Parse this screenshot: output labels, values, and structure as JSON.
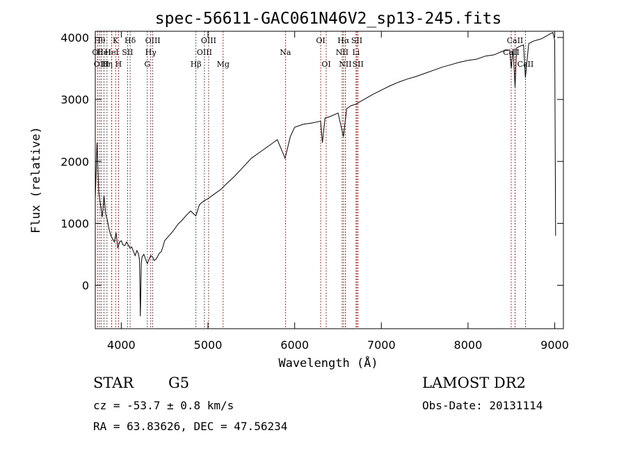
{
  "chart_data": {
    "type": "line",
    "title": "spec-56611-GAC061N46V2_sp13-245.fits",
    "xlabel": "Wavelength (Å)",
    "ylabel": "Flux (relative)",
    "xlim": [
      3700,
      9100
    ],
    "ylim": [
      -700,
      4100
    ],
    "x_ticks": [
      4000,
      5000,
      6000,
      7000,
      8000,
      9000
    ],
    "y_ticks": [
      0,
      1000,
      2000,
      3000,
      4000
    ],
    "grid": false,
    "line_color": "#000000",
    "marker_color": "#8b0000",
    "series": [
      {
        "x": [
          3700,
          3720,
          3740,
          3760,
          3780,
          3800,
          3820,
          3840,
          3860,
          3880,
          3900,
          3920,
          3940,
          3960,
          3980,
          4000,
          4020,
          4040,
          4060,
          4080,
          4100,
          4120,
          4140,
          4160,
          4180,
          4200,
          4210,
          4220,
          4230,
          4240,
          4260,
          4280,
          4300,
          4320,
          4340,
          4360,
          4380,
          4400,
          4420,
          4440,
          4460,
          4480,
          4500,
          4550,
          4600,
          4650,
          4700,
          4750,
          4800,
          4860,
          4900,
          4950,
          5000,
          5050,
          5100,
          5150,
          5200,
          5300,
          5400,
          5500,
          5600,
          5700,
          5800,
          5890,
          5950,
          6000,
          6100,
          6200,
          6300,
          6320,
          6350,
          6400,
          6500,
          6563,
          6600,
          6650,
          6700,
          6800,
          6900,
          7000,
          7100,
          7200,
          7300,
          7400,
          7500,
          7600,
          7700,
          7800,
          7900,
          8000,
          8100,
          8200,
          8300,
          8400,
          8480,
          8498,
          8520,
          8542,
          8560,
          8600,
          8640,
          8662,
          8700,
          8750,
          8800,
          8850,
          8900,
          8950,
          8980,
          9000,
          9010
        ],
        "y": [
          1400,
          2300,
          1500,
          1300,
          1100,
          1450,
          1150,
          1050,
          900,
          800,
          750,
          700,
          850,
          600,
          700,
          720,
          650,
          640,
          700,
          650,
          600,
          620,
          550,
          480,
          560,
          500,
          400,
          -500,
          350,
          460,
          500,
          420,
          350,
          420,
          480,
          460,
          400,
          420,
          470,
          520,
          540,
          620,
          720,
          800,
          880,
          980,
          1050,
          1130,
          1200,
          1120,
          1300,
          1360,
          1400,
          1450,
          1500,
          1550,
          1620,
          1750,
          1900,
          2050,
          2150,
          2250,
          2350,
          2050,
          2400,
          2550,
          2600,
          2620,
          2650,
          2300,
          2700,
          2720,
          2780,
          2400,
          2850,
          2900,
          2920,
          3000,
          3080,
          3150,
          3220,
          3280,
          3330,
          3370,
          3420,
          3470,
          3520,
          3560,
          3600,
          3630,
          3650,
          3700,
          3720,
          3780,
          3800,
          3500,
          3820,
          3200,
          3830,
          3860,
          3880,
          3350,
          3900,
          3940,
          3960,
          3980,
          4020,
          4060,
          4080,
          3950,
          800
        ]
      }
    ],
    "lines": [
      {
        "x": 3727,
        "labels": [
          "Oll"
        ],
        "row": 1
      },
      {
        "x": 3750,
        "labels": [
          "Hθ"
        ],
        "row": 0
      },
      {
        "x": 3770,
        "labels": [
          "OIII"
        ],
        "row": 2
      },
      {
        "x": 3800,
        "labels": [
          "HeI"
        ],
        "row": 1
      },
      {
        "x": 3835,
        "labels": [
          "Hη"
        ],
        "row": 2
      },
      {
        "x": 3889,
        "labels": [
          "HeI"
        ],
        "row": 1
      },
      {
        "x": 3934,
        "labels": [
          "K"
        ],
        "row": 0
      },
      {
        "x": 3968,
        "labels": [
          "H"
        ],
        "row": 2
      },
      {
        "x": 4072,
        "labels": [
          "SII"
        ],
        "row": 1
      },
      {
        "x": 4102,
        "labels": [
          "Hδ"
        ],
        "row": 0
      },
      {
        "x": 4300,
        "labels": [
          "G"
        ],
        "row": 2
      },
      {
        "x": 4340,
        "labels": [
          "Hγ"
        ],
        "row": 1
      },
      {
        "x": 4363,
        "labels": [
          "OIII"
        ],
        "row": 0
      },
      {
        "x": 4861,
        "labels": [
          "Hβ"
        ],
        "row": 2
      },
      {
        "x": 4959,
        "labels": [
          "OIII"
        ],
        "row": 1
      },
      {
        "x": 5007,
        "labels": [
          "OIII"
        ],
        "row": 0
      },
      {
        "x": 5175,
        "labels": [
          "Mg"
        ],
        "row": 2
      },
      {
        "x": 5893,
        "labels": [
          "Na"
        ],
        "row": 1
      },
      {
        "x": 6300,
        "labels": [
          "OI"
        ],
        "row": 0
      },
      {
        "x": 6364,
        "labels": [
          "OI"
        ],
        "row": 2
      },
      {
        "x": 6548,
        "labels": [
          "NII"
        ],
        "row": 1
      },
      {
        "x": 6563,
        "labels": [
          "Hα"
        ],
        "row": 0
      },
      {
        "x": 6584,
        "labels": [
          "NII"
        ],
        "row": 2
      },
      {
        "x": 6708,
        "labels": [
          "Li"
        ],
        "row": 1
      },
      {
        "x": 6717,
        "labels": [
          "SII"
        ],
        "row": 0
      },
      {
        "x": 6731,
        "labels": [
          "SII"
        ],
        "row": 2
      },
      {
        "x": 8498,
        "labels": [
          "CaII"
        ],
        "row": 1
      },
      {
        "x": 8542,
        "labels": [
          "CaII"
        ],
        "row": 0
      },
      {
        "x": 8662,
        "labels": [
          "CaII"
        ],
        "row": 2
      }
    ]
  },
  "info": {
    "object_class": "STAR",
    "subclass": "G5",
    "survey": "LAMOST DR2",
    "cz": "cz = -53.7 ± 0.8 km/s",
    "obs_date": "Obs-Date: 20131114",
    "coords": "RA =  63.83626, DEC =  47.56234"
  }
}
